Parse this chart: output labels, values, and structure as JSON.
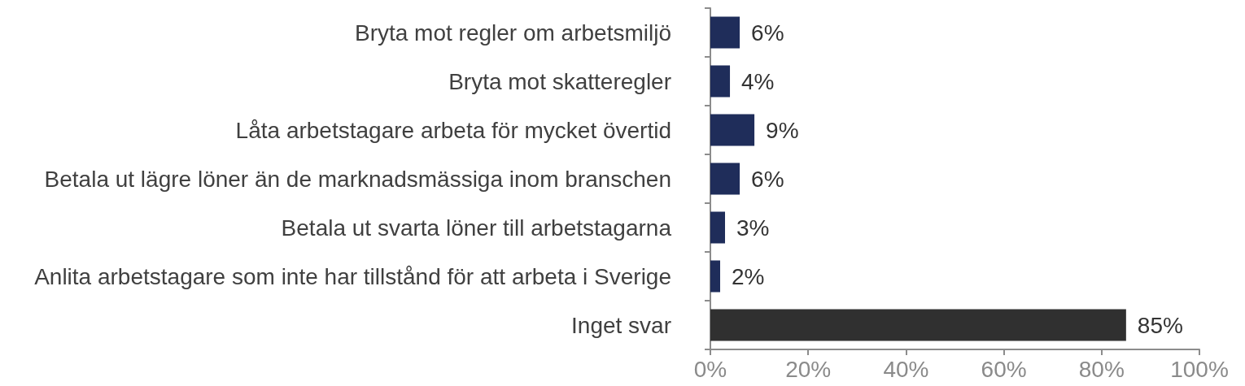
{
  "chart_data": {
    "type": "bar",
    "orientation": "horizontal",
    "categories": [
      "Bryta mot regler om arbetsmiljö",
      "Bryta mot skatteregler",
      "Låta arbetstagare arbeta för mycket övertid",
      "Betala ut lägre löner än de marknadsmässiga inom branschen",
      "Betala ut svarta löner till arbetstagarna",
      "Anlita arbetstagare som inte har tillstånd för att arbeta i Sverige",
      "Inget svar"
    ],
    "values": [
      6,
      4,
      9,
      6,
      3,
      2,
      85
    ],
    "colors": [
      "#1f2d5a",
      "#1f2d5a",
      "#1f2d5a",
      "#1f2d5a",
      "#1f2d5a",
      "#1f2d5a",
      "#303030"
    ],
    "value_labels": [
      "6%",
      "4%",
      "9%",
      "6%",
      "3%",
      "2%",
      "85%"
    ],
    "xlim": [
      0,
      100
    ],
    "xticks": [
      {
        "value": 0,
        "label": "0%"
      },
      {
        "value": 20,
        "label": "20%"
      },
      {
        "value": 40,
        "label": "40%"
      },
      {
        "value": 60,
        "label": "60%"
      },
      {
        "value": 80,
        "label": "80%"
      },
      {
        "value": 100,
        "label": "100%"
      }
    ],
    "grid": false
  }
}
